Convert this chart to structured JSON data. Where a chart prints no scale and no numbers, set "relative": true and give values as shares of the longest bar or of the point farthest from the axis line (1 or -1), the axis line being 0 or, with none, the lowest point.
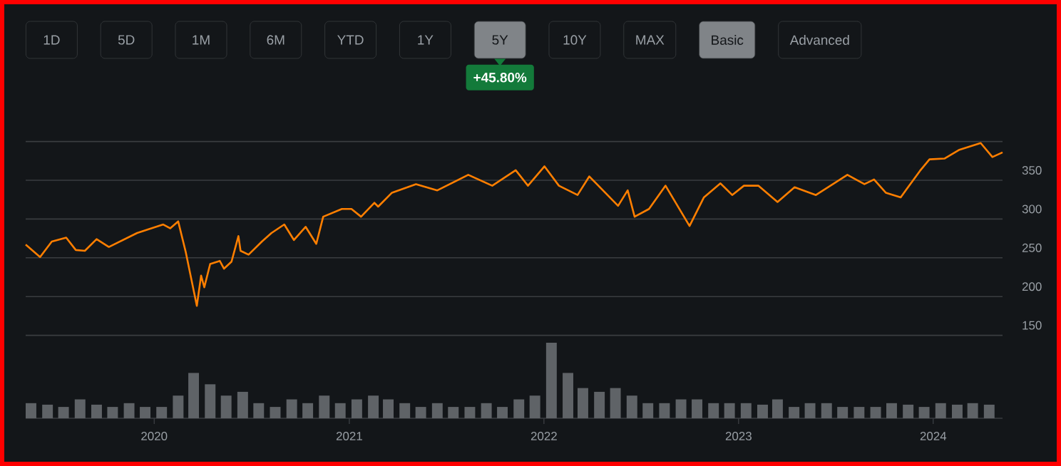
{
  "chart_data": [
    {
      "type": "line",
      "color": "#ff7f00",
      "grid": "y",
      "tick_labels": "y",
      "annotations": [
        "1D",
        "5D",
        "1M",
        "6M",
        "YTD",
        "1Y",
        "5Y",
        "10Y",
        "MAX",
        "Basic",
        "Advanced",
        "+45.80%"
      ],
      "xlim": [
        "2019-05-05",
        "2024-05-10"
      ],
      "ylim": [
        150,
        400
      ],
      "yticks": [
        150,
        200,
        250,
        300,
        350,
        {
          "value": 400,
          "label": null
        }
      ],
      "x": [
        "2019-05-05",
        "2019-06-01",
        "2019-06-23",
        "2019-07-20",
        "2019-08-07",
        "2019-08-24",
        "2019-09-15",
        "2019-10-08",
        "2019-11-30",
        "2020-01-18",
        "2020-01-31",
        "2020-02-15",
        "2020-02-29",
        "2020-03-21",
        "2020-03-29",
        "2020-04-04",
        "2020-04-15",
        "2020-05-03",
        "2020-05-11",
        "2020-05-25",
        "2020-06-07",
        "2020-06-11",
        "2020-06-26",
        "2020-07-21",
        "2020-08-08",
        "2020-09-01",
        "2020-09-19",
        "2020-10-11",
        "2020-10-31",
        "2020-11-13",
        "2020-12-18",
        "2021-01-05",
        "2021-01-23",
        "2021-02-17",
        "2021-02-24",
        "2021-03-22",
        "2021-05-06",
        "2021-06-15",
        "2021-08-12",
        "2021-09-26",
        "2021-11-09",
        "2021-12-02",
        "2022-01-02",
        "2022-01-29",
        "2022-03-05",
        "2022-03-27",
        "2022-05-20",
        "2022-06-07",
        "2022-06-20",
        "2022-07-17",
        "2022-08-17",
        "2022-10-01",
        "2022-10-28",
        "2022-11-28",
        "2022-12-20",
        "2023-01-11",
        "2023-02-07",
        "2023-03-15",
        "2023-04-16",
        "2023-05-26",
        "2023-07-24",
        "2023-08-25",
        "2023-09-12",
        "2023-10-04",
        "2023-11-01",
        "2023-12-07",
        "2023-12-25",
        "2024-01-22",
        "2024-02-18",
        "2024-03-30",
        "2024-04-21",
        "2024-05-10"
      ],
      "values": [
        267,
        251,
        271,
        276,
        260,
        259,
        274,
        264,
        282,
        293,
        288,
        297,
        258,
        188,
        227,
        212,
        242,
        246,
        236,
        245,
        278,
        259,
        254,
        271,
        282,
        293,
        273,
        290,
        268,
        303,
        313,
        313,
        303,
        321,
        316,
        334,
        345,
        337,
        357,
        343,
        363,
        343,
        368,
        343,
        331,
        355,
        317,
        337,
        303,
        313,
        343,
        291,
        328,
        346,
        331,
        343,
        343,
        322,
        341,
        331,
        357,
        345,
        351,
        334,
        328,
        362,
        377,
        378,
        389,
        398,
        380,
        386
      ]
    },
    {
      "type": "bar",
      "color": "#5f6367",
      "relative": true,
      "xlim": [
        "2019-05-05",
        "2024-05-10"
      ],
      "xticks": [
        {
          "value": "2020-01-01",
          "label": "2020"
        },
        {
          "value": "2021-01-01",
          "label": "2021"
        },
        {
          "value": "2022-01-01",
          "label": "2022"
        },
        {
          "value": "2023-01-01",
          "label": "2023"
        },
        {
          "value": "2024-01-01",
          "label": "2024"
        }
      ],
      "x": [
        "2019-05-15",
        "2019-06-15",
        "2019-07-15",
        "2019-08-15",
        "2019-09-15",
        "2019-10-15",
        "2019-11-15",
        "2019-12-15",
        "2020-01-15",
        "2020-02-15",
        "2020-03-15",
        "2020-04-15",
        "2020-05-15",
        "2020-06-15",
        "2020-07-15",
        "2020-08-15",
        "2020-09-15",
        "2020-10-15",
        "2020-11-15",
        "2020-12-15",
        "2021-01-15",
        "2021-02-15",
        "2021-03-15",
        "2021-04-15",
        "2021-05-15",
        "2021-06-15",
        "2021-07-15",
        "2021-08-15",
        "2021-09-15",
        "2021-10-15",
        "2021-11-15",
        "2021-12-15",
        "2022-01-15",
        "2022-02-15",
        "2022-03-15",
        "2022-04-15",
        "2022-05-15",
        "2022-06-15",
        "2022-07-15",
        "2022-08-15",
        "2022-09-15",
        "2022-10-15",
        "2022-11-15",
        "2022-12-15",
        "2023-01-15",
        "2023-02-15",
        "2023-03-15",
        "2023-04-15",
        "2023-05-15",
        "2023-06-15",
        "2023-07-15",
        "2023-08-15",
        "2023-09-15",
        "2023-10-15",
        "2023-11-15",
        "2023-12-15",
        "2024-01-15",
        "2024-02-15",
        "2024-03-15",
        "2024-04-15"
      ],
      "values": [
        0.2,
        0.18,
        0.15,
        0.25,
        0.18,
        0.15,
        0.2,
        0.15,
        0.15,
        0.3,
        0.6,
        0.45,
        0.3,
        0.35,
        0.2,
        0.15,
        0.25,
        0.2,
        0.3,
        0.2,
        0.25,
        0.3,
        0.25,
        0.2,
        0.15,
        0.2,
        0.15,
        0.15,
        0.2,
        0.15,
        0.25,
        0.3,
        1.0,
        0.6,
        0.4,
        0.35,
        0.4,
        0.3,
        0.2,
        0.2,
        0.25,
        0.25,
        0.2,
        0.2,
        0.2,
        0.18,
        0.25,
        0.15,
        0.2,
        0.2,
        0.15,
        0.15,
        0.15,
        0.2,
        0.18,
        0.15,
        0.2,
        0.18,
        0.2,
        0.18
      ]
    }
  ]
}
